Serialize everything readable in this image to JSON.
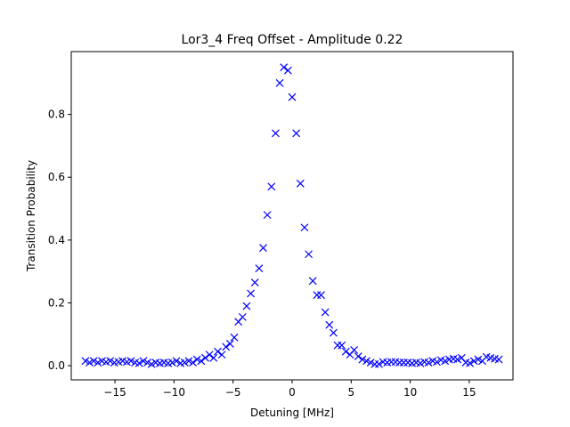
{
  "chart_data": {
    "type": "scatter",
    "title": "Lor3_4 Freq Offset - Amplitude 0.22",
    "xlabel": "Detuning [MHz]",
    "ylabel": "Transition Probability",
    "xlim": [
      -18.7,
      18.7
    ],
    "ylim": [
      -0.045,
      1.0
    ],
    "xticks": [
      -15,
      -10,
      -5,
      0,
      5,
      10,
      15
    ],
    "xtick_labels": [
      "−15",
      "−10",
      "−5",
      "0",
      "5",
      "10",
      "15"
    ],
    "yticks": [
      0.0,
      0.2,
      0.4,
      0.6,
      0.8
    ],
    "ytick_labels": [
      "0.0",
      "0.2",
      "0.4",
      "0.6",
      "0.8"
    ],
    "grid": false,
    "marker": "x",
    "color": "#0000ff",
    "series": [
      {
        "x": [
          -17.5,
          -17.15,
          -16.8,
          -16.45,
          -16.1,
          -15.75,
          -15.4,
          -15.05,
          -14.7,
          -14.35,
          -14.0,
          -13.65,
          -13.3,
          -12.95,
          -12.6,
          -12.25,
          -11.9,
          -11.55,
          -11.2,
          -10.85,
          -10.5,
          -10.15,
          -9.8,
          -9.45,
          -9.1,
          -8.75,
          -8.4,
          -8.05,
          -7.7,
          -7.35,
          -7.0,
          -6.65,
          -6.3,
          -5.95,
          -5.6,
          -5.25,
          -4.9,
          -4.55,
          -4.2,
          -3.85,
          -3.5,
          -3.15,
          -2.8,
          -2.45,
          -2.1,
          -1.75,
          -1.4,
          -1.05,
          -0.7,
          -0.35,
          0.0,
          0.35,
          0.7,
          1.05,
          1.4,
          1.75,
          2.1,
          2.45,
          2.8,
          3.15,
          3.5,
          3.85,
          4.2,
          4.55,
          4.9,
          5.25,
          5.6,
          5.95,
          6.3,
          6.65,
          7.0,
          7.35,
          7.7,
          8.05,
          8.4,
          8.75,
          9.1,
          9.45,
          9.8,
          10.15,
          10.5,
          10.85,
          11.2,
          11.55,
          11.9,
          12.25,
          12.6,
          12.95,
          13.3,
          13.65,
          14.0,
          14.35,
          14.7,
          15.05,
          15.4,
          15.75,
          16.1,
          16.45,
          16.8,
          17.15,
          17.5
        ],
        "y": [
          0.015,
          0.01,
          0.015,
          0.01,
          0.015,
          0.012,
          0.015,
          0.01,
          0.012,
          0.015,
          0.012,
          0.015,
          0.01,
          0.008,
          0.015,
          0.01,
          0.005,
          0.01,
          0.008,
          0.01,
          0.008,
          0.01,
          0.015,
          0.008,
          0.01,
          0.015,
          0.01,
          0.02,
          0.015,
          0.025,
          0.035,
          0.025,
          0.045,
          0.035,
          0.06,
          0.07,
          0.09,
          0.14,
          0.155,
          0.19,
          0.23,
          0.265,
          0.31,
          0.375,
          0.48,
          0.57,
          0.74,
          0.9,
          0.95,
          0.94,
          0.855,
          0.74,
          0.58,
          0.44,
          0.355,
          0.27,
          0.225,
          0.225,
          0.17,
          0.13,
          0.105,
          0.065,
          0.065,
          0.045,
          0.035,
          0.05,
          0.03,
          0.02,
          0.015,
          0.01,
          0.005,
          0.005,
          0.012,
          0.01,
          0.012,
          0.012,
          0.01,
          0.01,
          0.01,
          0.008,
          0.01,
          0.008,
          0.012,
          0.01,
          0.015,
          0.012,
          0.018,
          0.015,
          0.02,
          0.022,
          0.02,
          0.025,
          0.01,
          0.008,
          0.015,
          0.02,
          0.015,
          0.028,
          0.025,
          0.022,
          0.02
        ]
      }
    ]
  }
}
